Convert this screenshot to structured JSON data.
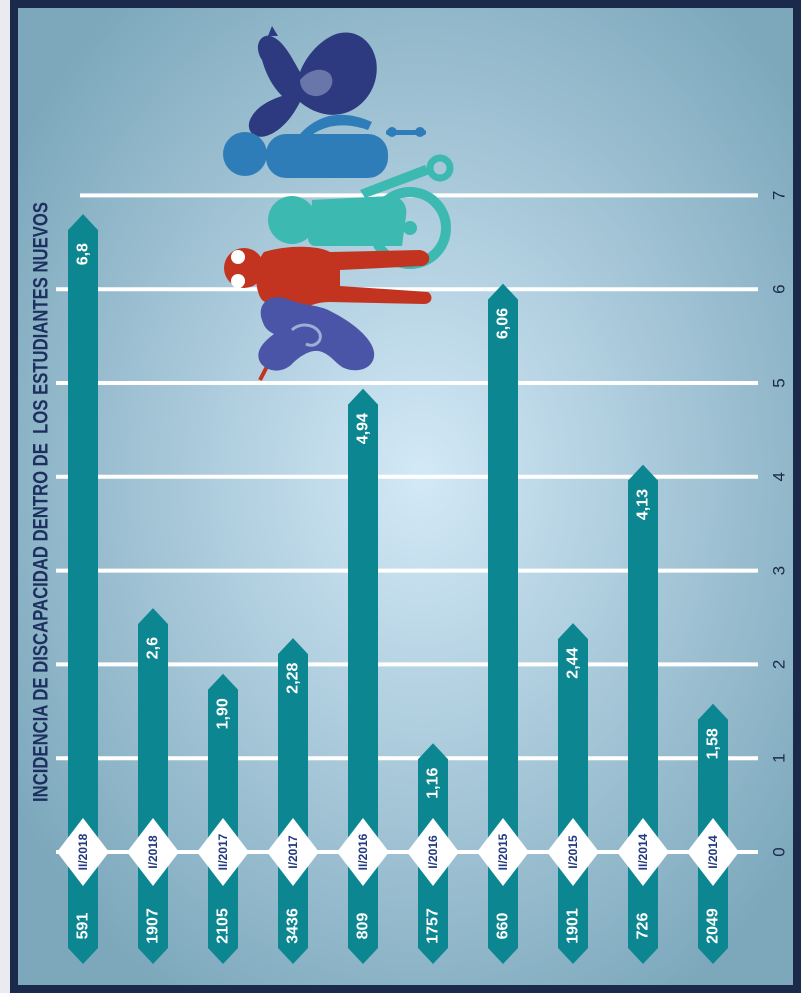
{
  "chart_data": {
    "type": "bar",
    "title": "INCIDENCIA DE DISCAPACIDAD DENTRO DE  LOS ESTUDIANTES NUEVOS",
    "categories": [
      "II/2018",
      "I/2018",
      "II/2017",
      "I/2017",
      "II/2016",
      "I/2016",
      "II/2015",
      "I/2015",
      "II/2014",
      "I/2014"
    ],
    "values": [
      6.8,
      2.6,
      1.9,
      2.28,
      4.94,
      1.16,
      6.06,
      2.44,
      4.13,
      1.58
    ],
    "value_labels": [
      "6,8",
      "2,6",
      "1,90",
      "2,28",
      "4,94",
      "1,16",
      "6,06",
      "2,44",
      "4,13",
      "1,58"
    ],
    "counts": [
      "591",
      "1907",
      "2105",
      "3436",
      "809",
      "1757",
      "660",
      "1901",
      "726",
      "2049"
    ],
    "ylim": [
      0,
      7
    ],
    "yticks": [
      "0",
      "1",
      "2",
      "3",
      "4",
      "5",
      "6",
      "7"
    ],
    "grid": true
  },
  "colors": {
    "bar": "#0c8792",
    "frame": "#1b2a4a",
    "title": "#1c2f5e",
    "category_label": "#22397e",
    "gridline": "#ffffff",
    "panel_center": "#d3e9f7",
    "panel_edge": "#7da8bc"
  },
  "illustration": {
    "icons": [
      "sign-language-hands-icon",
      "person-with-cane-icon",
      "wheelchair-user-icon",
      "blind-person-icon",
      "ear-icon"
    ]
  }
}
